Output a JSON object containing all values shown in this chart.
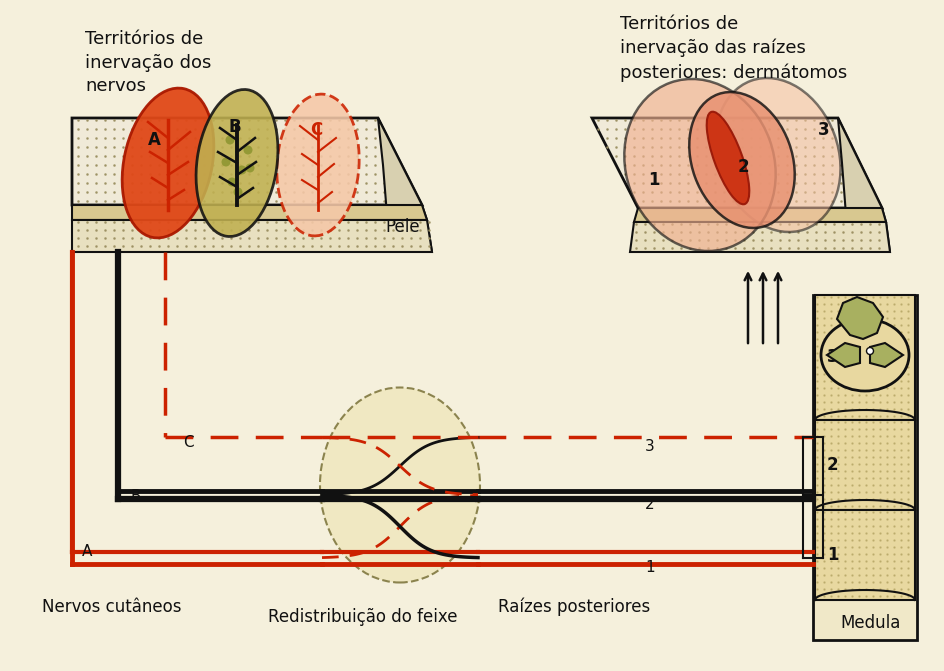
{
  "bg_color": "#f5f0dc",
  "title_left": "Territórios de\ninervação dos\nnervos",
  "title_right": "Territórios de\ninervação das raízes\nposteriores: dermátomos",
  "label_pele": "Pele",
  "label_nervos": "Nervos cutâneos",
  "label_redistribuicao": "Redistribuição do feixe",
  "label_raizes": "Raízes posteriores",
  "label_medula": "Medula",
  "color_red": "#cc2200",
  "color_black": "#111111",
  "color_orange_strong": "#e05020",
  "color_orange_pale": "#f5c8a8",
  "color_skin_box": "#d8c890",
  "color_box_top": "#f0ead8",
  "color_box_side": "#d8d0b0",
  "color_cord_fill": "#e8d8a0",
  "color_cord_gm": "#a0a050"
}
